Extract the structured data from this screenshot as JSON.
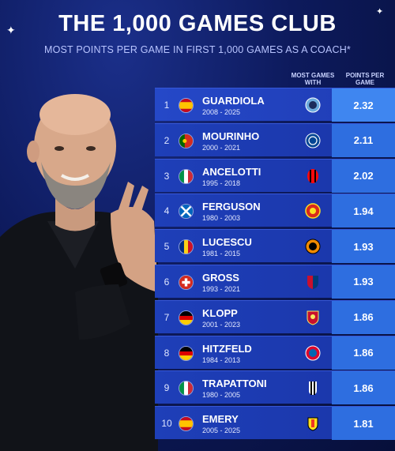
{
  "header": {
    "title": "THE 1,000 GAMES CLUB",
    "subtitle": "MOST POINTS PER GAME IN FIRST 1,000 GAMES AS A COACH*"
  },
  "columns": {
    "games_with": "MOST GAMES WITH",
    "ppg": "POINTS PER GAME"
  },
  "rows": [
    {
      "rank": "1",
      "name": "GUARDIOLA",
      "years": "2008 - 2025",
      "ppg": "2.32",
      "flag": "spain",
      "club": "man-city-badge"
    },
    {
      "rank": "2",
      "name": "MOURINHO",
      "years": "2000 - 2021",
      "ppg": "2.11",
      "flag": "portugal",
      "club": "chelsea-badge"
    },
    {
      "rank": "3",
      "name": "ANCELOTTI",
      "years": "1995 - 2018",
      "ppg": "2.02",
      "flag": "italy",
      "club": "ac-milan-badge"
    },
    {
      "rank": "4",
      "name": "FERGUSON",
      "years": "1980 - 2003",
      "ppg": "1.94",
      "flag": "scotland",
      "club": "man-united-badge"
    },
    {
      "rank": "5",
      "name": "LUCESCU",
      "years": "1981 - 2015",
      "ppg": "1.93",
      "flag": "romania",
      "club": "shakhtar-badge"
    },
    {
      "rank": "6",
      "name": "GROSS",
      "years": "1993 - 2021",
      "ppg": "1.93",
      "flag": "switzerland",
      "club": "basel-badge"
    },
    {
      "rank": "7",
      "name": "KLOPP",
      "years": "2001 - 2023",
      "ppg": "1.86",
      "flag": "germany",
      "club": "liverpool-badge"
    },
    {
      "rank": "8",
      "name": "HITZFELD",
      "years": "1984 - 2013",
      "ppg": "1.86",
      "flag": "germany",
      "club": "bayern-badge"
    },
    {
      "rank": "9",
      "name": "TRAPATTONI",
      "years": "1980 - 2005",
      "ppg": "1.86",
      "flag": "italy",
      "club": "juventus-badge"
    },
    {
      "rank": "10",
      "name": "EMERY",
      "years": "2005 - 2025",
      "ppg": "1.81",
      "flag": "spain",
      "club": "valencia-badge"
    }
  ],
  "colors": {
    "background": "#0d1a5c",
    "row": "#1e3fb8",
    "ppg_cell": "#2e6ee0"
  }
}
